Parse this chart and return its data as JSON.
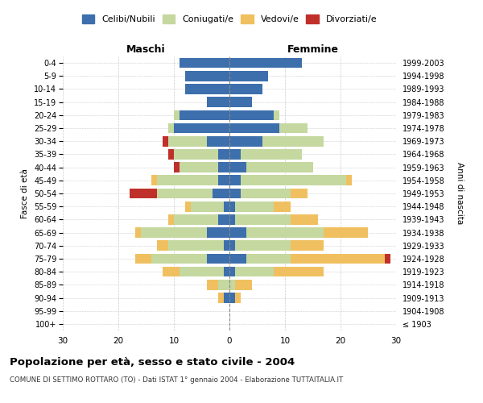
{
  "age_groups": [
    "100+",
    "95-99",
    "90-94",
    "85-89",
    "80-84",
    "75-79",
    "70-74",
    "65-69",
    "60-64",
    "55-59",
    "50-54",
    "45-49",
    "40-44",
    "35-39",
    "30-34",
    "25-29",
    "20-24",
    "15-19",
    "10-14",
    "5-9",
    "0-4"
  ],
  "birth_years": [
    "≤ 1903",
    "1904-1908",
    "1909-1913",
    "1914-1918",
    "1919-1923",
    "1924-1928",
    "1929-1933",
    "1934-1938",
    "1939-1943",
    "1944-1948",
    "1949-1953",
    "1954-1958",
    "1959-1963",
    "1964-1968",
    "1969-1973",
    "1974-1978",
    "1979-1983",
    "1984-1988",
    "1989-1993",
    "1994-1998",
    "1999-2003"
  ],
  "maschi": {
    "celibe": [
      0,
      0,
      1,
      0,
      1,
      4,
      1,
      4,
      2,
      1,
      3,
      2,
      2,
      2,
      4,
      10,
      9,
      4,
      8,
      8,
      9
    ],
    "coniugato": [
      0,
      0,
      0,
      2,
      8,
      10,
      10,
      12,
      8,
      6,
      10,
      11,
      7,
      8,
      7,
      1,
      1,
      0,
      0,
      0,
      0
    ],
    "vedovo": [
      0,
      0,
      1,
      2,
      3,
      3,
      2,
      1,
      1,
      1,
      0,
      1,
      0,
      0,
      0,
      0,
      0,
      0,
      0,
      0,
      0
    ],
    "divorziato": [
      0,
      0,
      0,
      0,
      0,
      0,
      0,
      0,
      0,
      0,
      5,
      0,
      1,
      1,
      1,
      0,
      0,
      0,
      0,
      0,
      0
    ]
  },
  "femmine": {
    "nubile": [
      0,
      0,
      1,
      0,
      1,
      3,
      1,
      3,
      1,
      1,
      2,
      2,
      3,
      2,
      6,
      9,
      8,
      4,
      6,
      7,
      13
    ],
    "coniugata": [
      0,
      0,
      0,
      1,
      7,
      8,
      10,
      14,
      10,
      7,
      9,
      19,
      12,
      11,
      11,
      5,
      1,
      0,
      0,
      0,
      0
    ],
    "vedova": [
      0,
      0,
      1,
      3,
      9,
      17,
      6,
      8,
      5,
      3,
      3,
      1,
      0,
      0,
      0,
      0,
      0,
      0,
      0,
      0,
      0
    ],
    "divorziata": [
      0,
      0,
      0,
      0,
      0,
      1,
      0,
      0,
      0,
      0,
      0,
      0,
      0,
      0,
      0,
      0,
      0,
      0,
      0,
      0,
      0
    ]
  },
  "colors": {
    "celibe": "#3d6fad",
    "coniugato": "#c5d8a0",
    "vedovo": "#f0c060",
    "divorziato": "#c0302a"
  },
  "xlim": 30,
  "title_main": "Popolazione per età, sesso e stato civile - 2004",
  "title_sub": "COMUNE DI SETTIMO ROTTARO (TO) - Dati ISTAT 1° gennaio 2004 - Elaborazione TUTTAITALIA.IT",
  "ylabel_left": "Fasce di età",
  "ylabel_right": "Anni di nascita",
  "xlabel_maschi": "Maschi",
  "xlabel_femmine": "Femmine",
  "legend_labels": [
    "Celibi/Nubili",
    "Coniugati/e",
    "Vedovi/e",
    "Divorziati/e"
  ],
  "background_color": "#ffffff"
}
